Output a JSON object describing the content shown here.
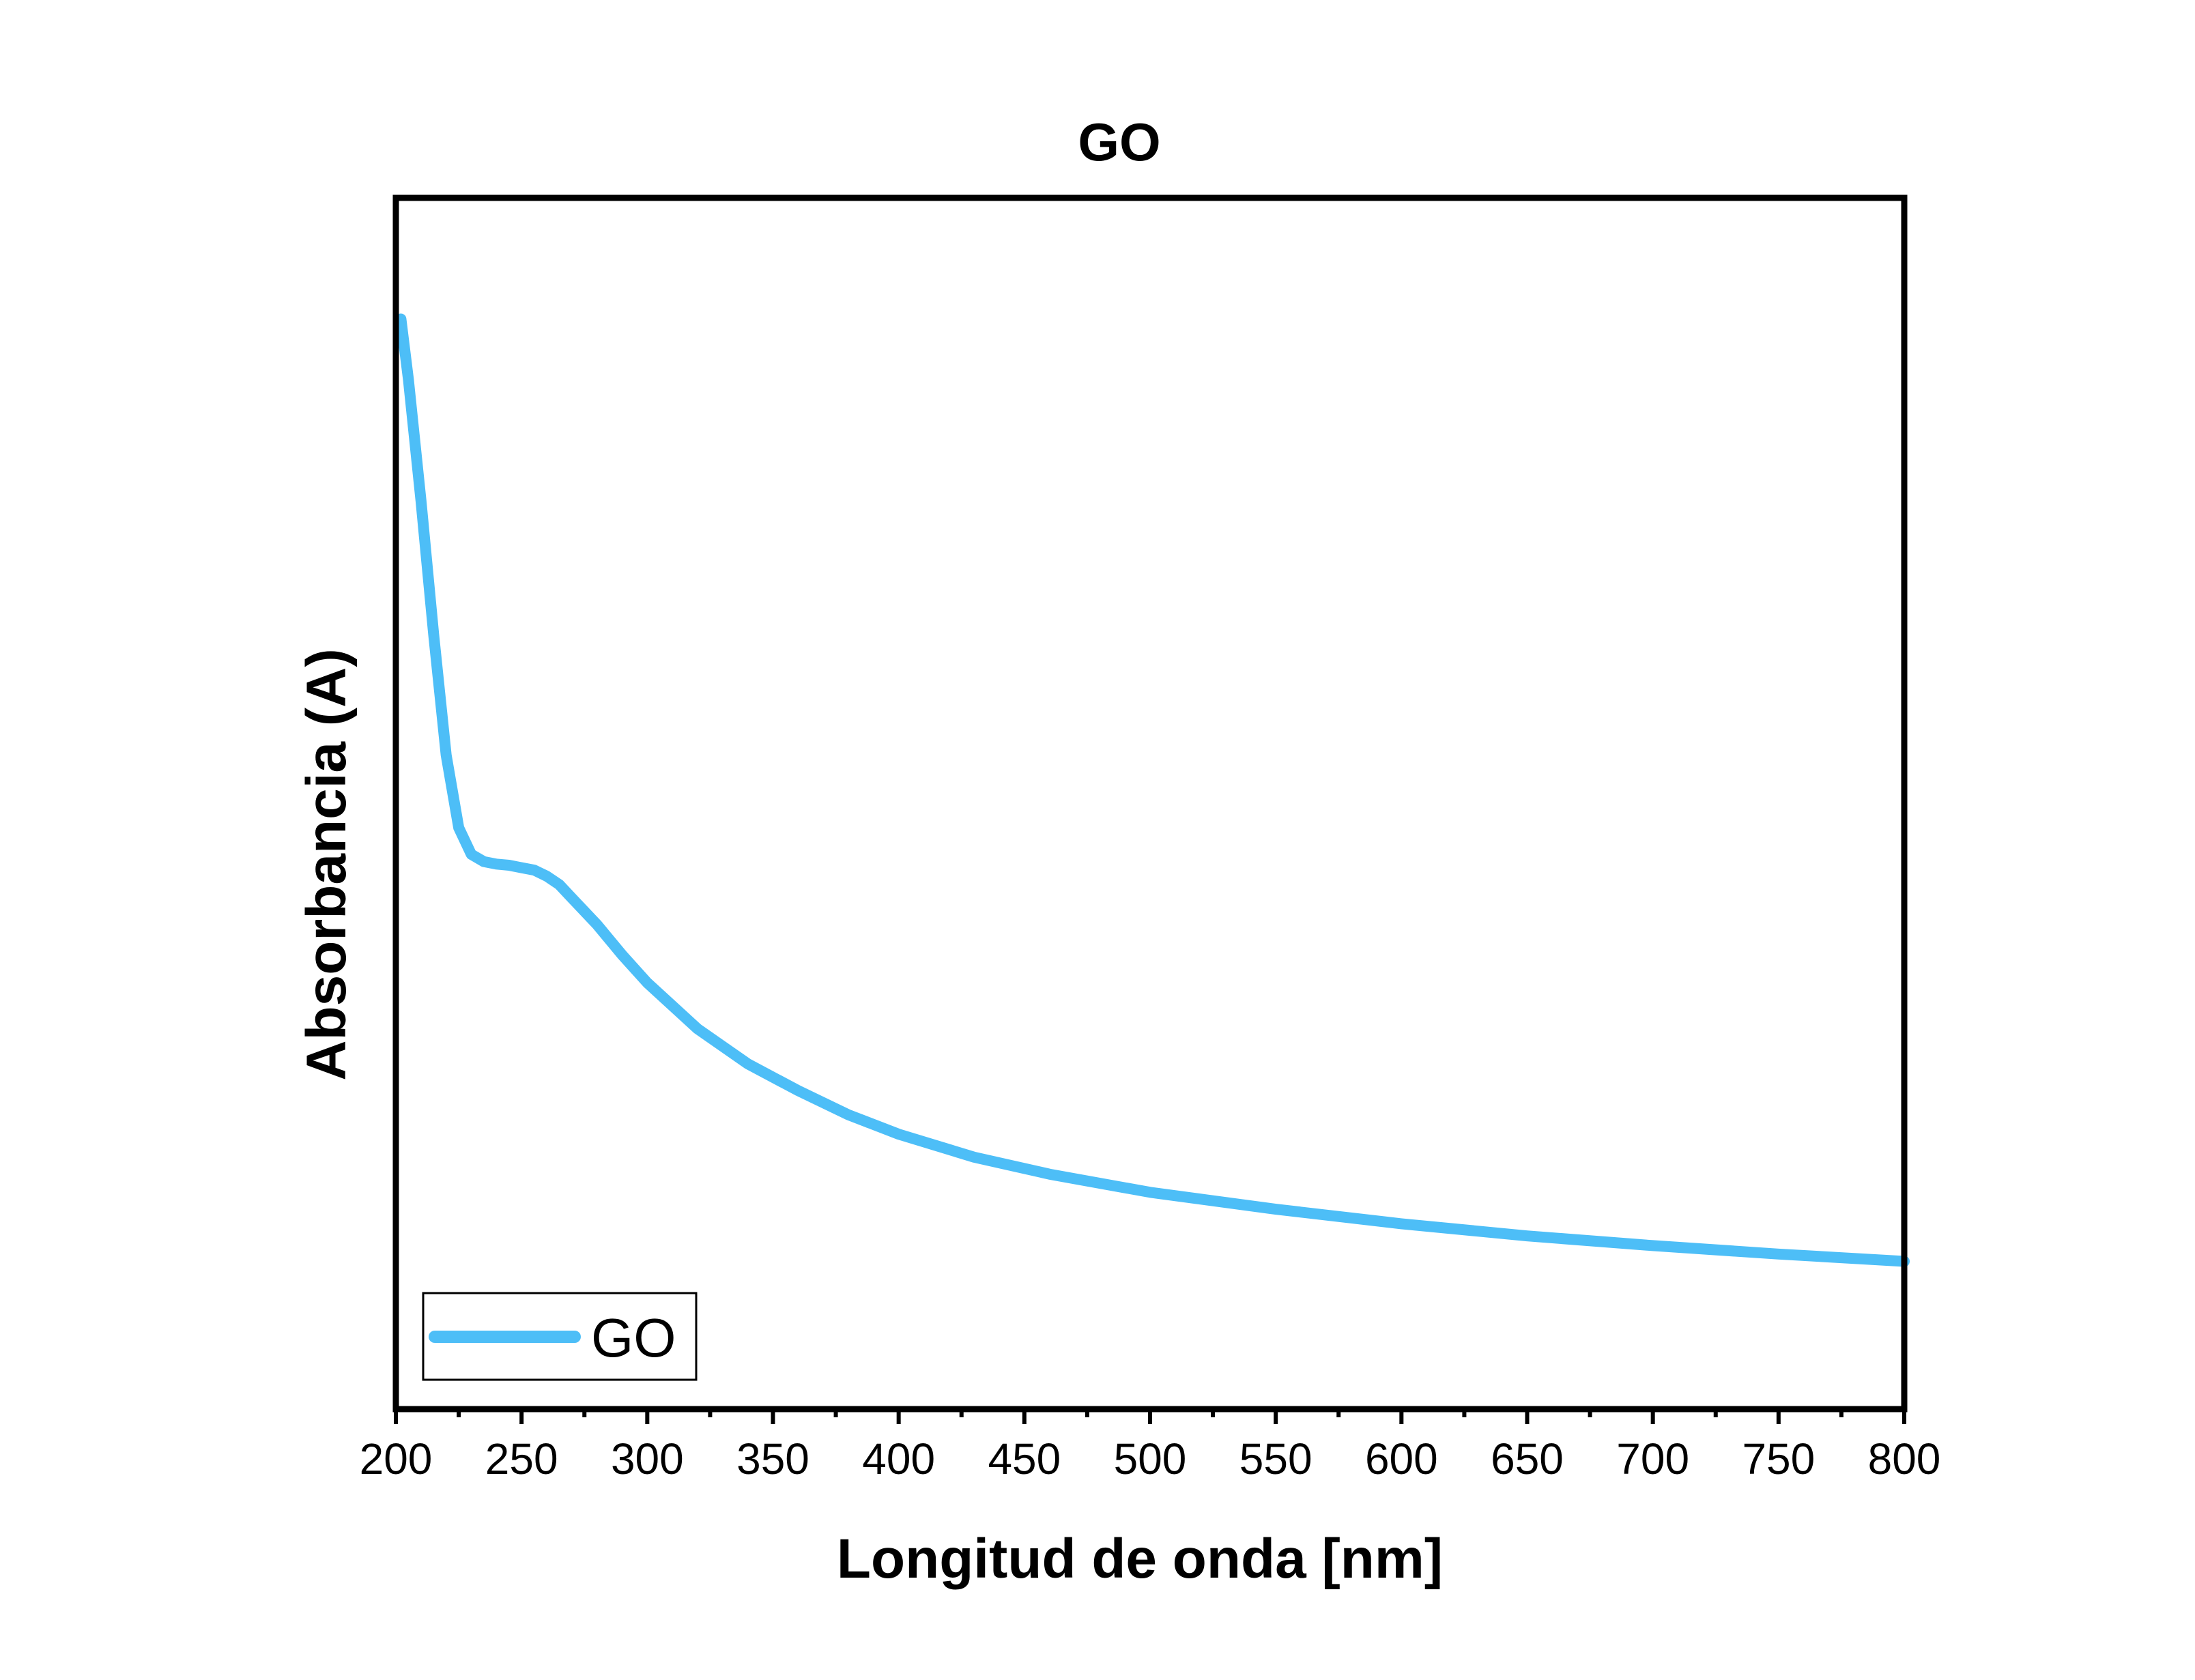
{
  "chart_data": {
    "type": "line",
    "title": "GO",
    "xlabel": "Longitud de onda [nm]",
    "ylabel": "Absorbancia (A)",
    "xlim": [
      200,
      800
    ],
    "ylim": [
      0,
      1
    ],
    "y_ticks_shown": false,
    "x_ticks": [
      "200",
      "250",
      "300",
      "350",
      "400",
      "450",
      "500",
      "550",
      "600",
      "650",
      "700",
      "750",
      "800"
    ],
    "x_tick_values": [
      200,
      250,
      300,
      350,
      400,
      450,
      500,
      550,
      600,
      650,
      700,
      750,
      800
    ],
    "legend_position": "bottom-left",
    "grid": false,
    "series": [
      {
        "name": "GO",
        "color": "#4DBEF7",
        "x": [
          202,
          205,
          210,
          215,
          220,
          225,
          230,
          235,
          240,
          245,
          250,
          255,
          260,
          265,
          270,
          280,
          290,
          300,
          320,
          340,
          360,
          380,
          400,
          430,
          460,
          500,
          550,
          600,
          650,
          700,
          750,
          800
        ],
        "y": [
          0.9,
          0.85,
          0.75,
          0.64,
          0.54,
          0.48,
          0.458,
          0.452,
          0.45,
          0.449,
          0.447,
          0.445,
          0.44,
          0.433,
          0.422,
          0.4,
          0.375,
          0.352,
          0.314,
          0.285,
          0.263,
          0.243,
          0.227,
          0.208,
          0.194,
          0.179,
          0.165,
          0.153,
          0.143,
          0.135,
          0.128,
          0.122
        ]
      }
    ]
  }
}
